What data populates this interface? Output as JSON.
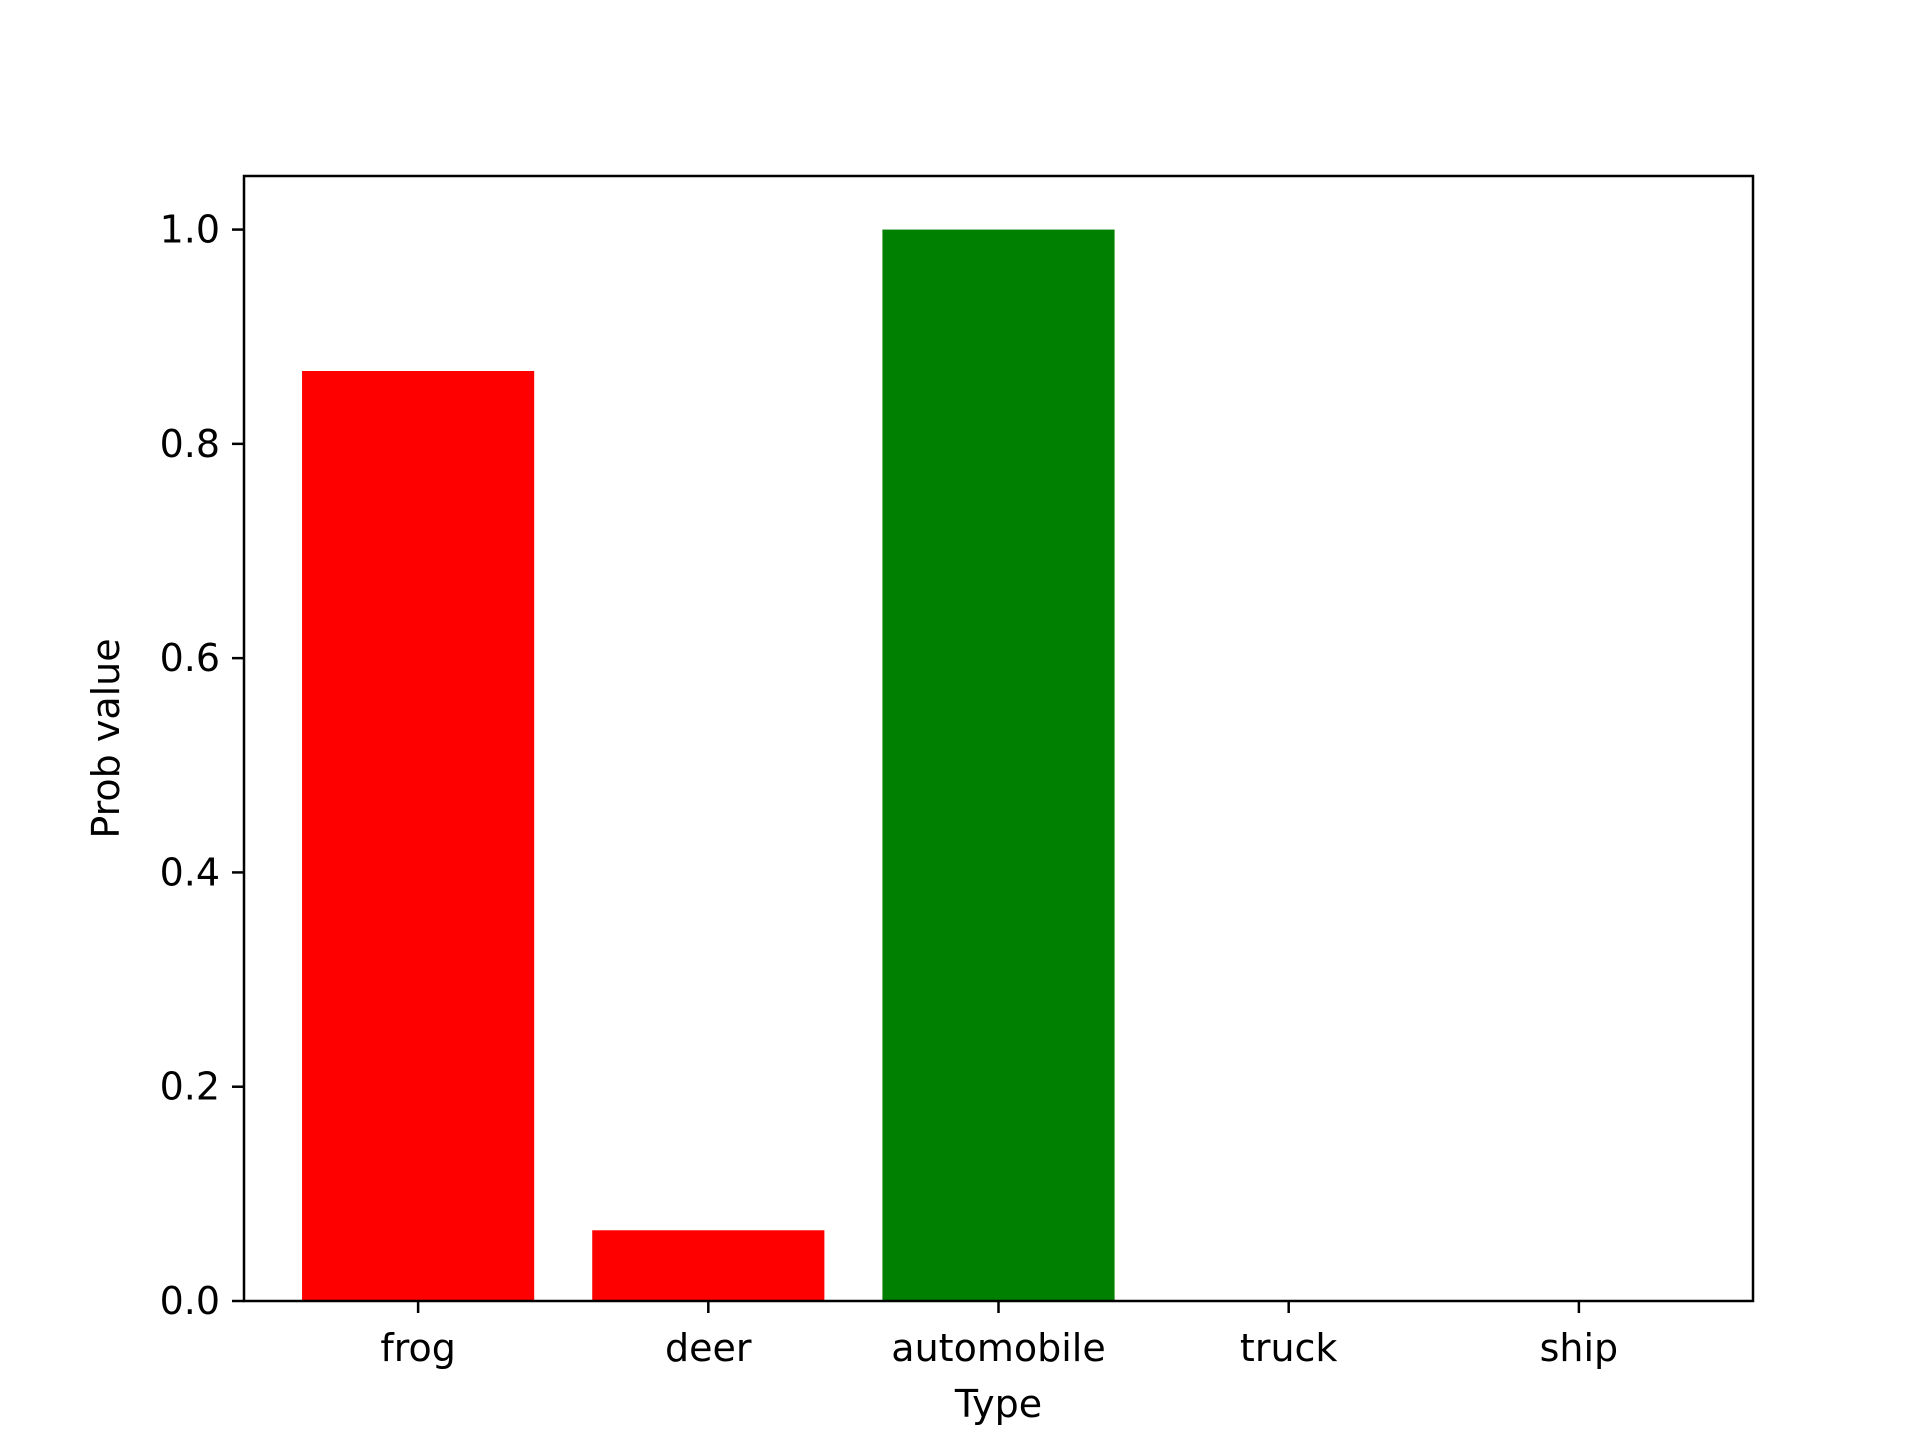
{
  "chart_data": {
    "type": "bar",
    "title": "",
    "xlabel": "Type",
    "ylabel": "Prob value",
    "categories": [
      "frog",
      "deer",
      "automobile",
      "truck",
      "ship"
    ],
    "values": [
      0.868,
      0.066,
      1.0,
      0.0,
      0.0
    ],
    "bar_colors": [
      "#ff0000",
      "#ff0000",
      "#008000",
      "#ff0000",
      "#ff0000"
    ],
    "ylim": [
      0,
      1.05
    ],
    "yticks": [
      0.0,
      0.2,
      0.4,
      0.6,
      0.8,
      1.0
    ],
    "ytick_labels": [
      "0.0",
      "0.2",
      "0.4",
      "0.6",
      "0.8",
      "1.0"
    ],
    "grid": false,
    "legend": "none"
  }
}
